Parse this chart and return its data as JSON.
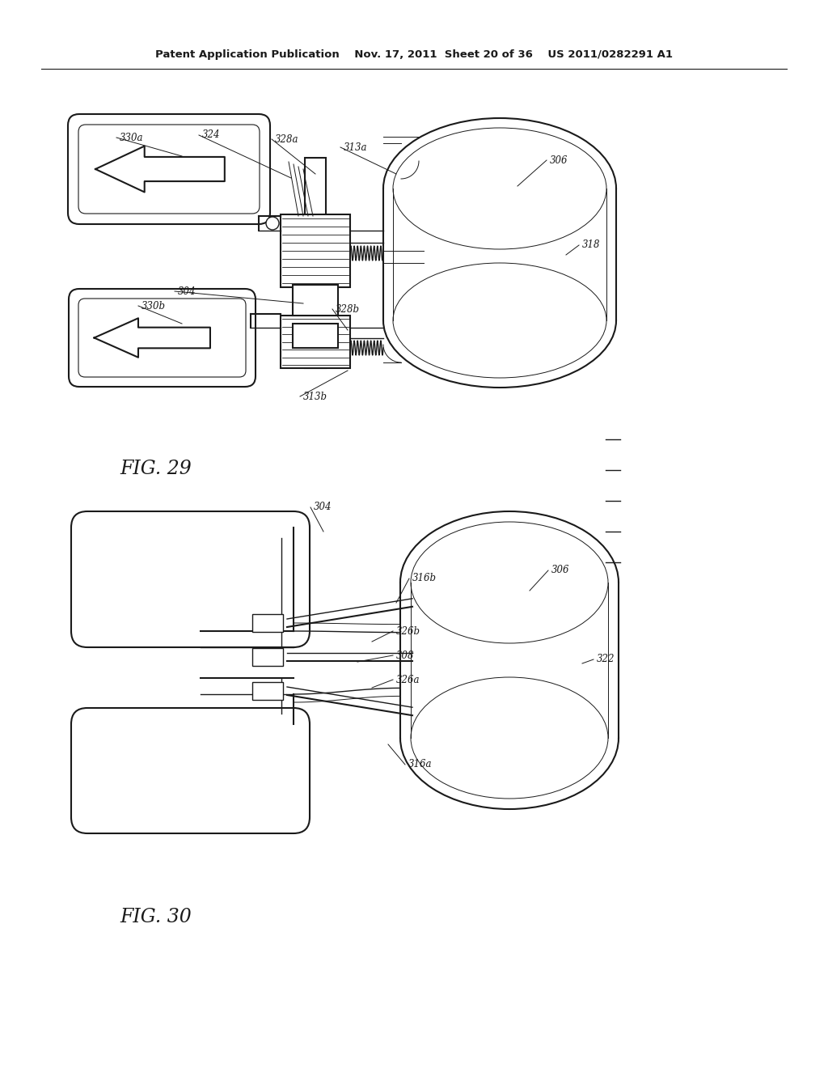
{
  "bg_color": "#ffffff",
  "line_color": "#1a1a1a",
  "header": "Patent Application Publication    Nov. 17, 2011  Sheet 20 of 36    US 2011/0282291 A1",
  "fig29_label": "FIG. 29",
  "fig30_label": "FIG. 30"
}
